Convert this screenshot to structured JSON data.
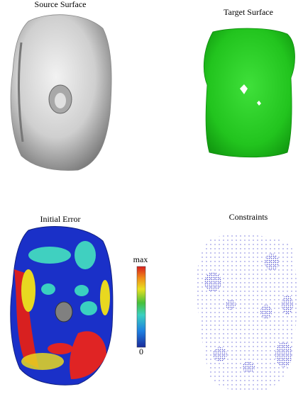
{
  "panels": [
    {
      "title": "Source Surface"
    },
    {
      "title": "Target Surface"
    },
    {
      "title": "Initial Error"
    },
    {
      "title": "Constraints"
    }
  ],
  "colorbar": {
    "max_label": "max",
    "min_label": "0"
  }
}
